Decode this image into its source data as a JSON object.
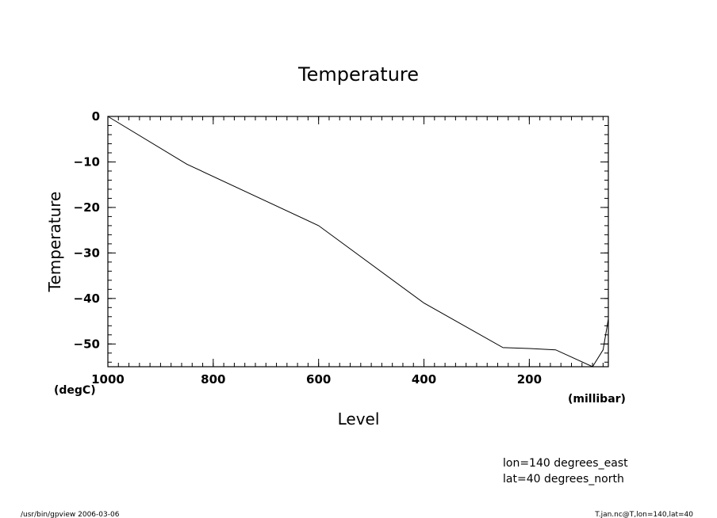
{
  "chart_data": {
    "type": "line",
    "title": "Temperature",
    "xlabel": "Level",
    "ylabel": "Temperature",
    "x_unit": "(millibar)",
    "y_unit": "(degC)",
    "xlim": [
      1000,
      50
    ],
    "ylim": [
      -55,
      0
    ],
    "x_reversed": true,
    "x_ticks": [
      1000,
      800,
      600,
      400,
      200
    ],
    "y_ticks": [
      0,
      -10,
      -20,
      -30,
      -40,
      -50
    ],
    "series": [
      {
        "x": [
          1000,
          850,
          600,
          400,
          250,
          200,
          150,
          80,
          60,
          50
        ],
        "y": [
          0,
          -10.5,
          -24,
          -41,
          -50.8,
          -51,
          -51.3,
          -55,
          -51.3,
          -44.5
        ]
      }
    ],
    "grid": false,
    "line_color": "#000000"
  },
  "annotations": {
    "lon": "lon=140 degrees_east",
    "lat": "lat=40 degrees_north"
  },
  "footer": {
    "left": "/usr/bin/gpview  2006-03-06",
    "right": "T.jan.nc@T,lon=140,lat=40"
  }
}
